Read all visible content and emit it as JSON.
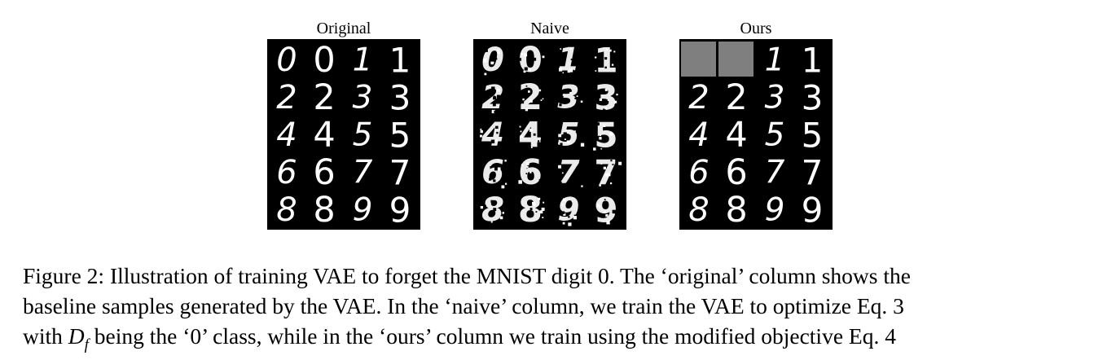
{
  "figure": {
    "panels": [
      {
        "title": "Original",
        "style": "clean",
        "rows": [
          [
            "0",
            "0",
            "1",
            "1"
          ],
          [
            "2",
            "2",
            "3",
            "3"
          ],
          [
            "4",
            "4",
            "5",
            "5"
          ],
          [
            "6",
            "6",
            "7",
            "7"
          ],
          [
            "8",
            "8",
            "9",
            "9"
          ]
        ],
        "gray_cells": []
      },
      {
        "title": "Naive",
        "style": "noisy",
        "rows": [
          [
            "0",
            "0",
            "1",
            "1"
          ],
          [
            "2",
            "2",
            "3",
            "3"
          ],
          [
            "4",
            "4",
            "5",
            "5"
          ],
          [
            "6",
            "6",
            "7",
            "7"
          ],
          [
            "8",
            "8",
            "9",
            "9"
          ]
        ],
        "gray_cells": []
      },
      {
        "title": "Ours",
        "style": "clean",
        "rows": [
          [
            "",
            "",
            "1",
            "1"
          ],
          [
            "2",
            "2",
            "3",
            "3"
          ],
          [
            "4",
            "4",
            "5",
            "5"
          ],
          [
            "6",
            "6",
            "7",
            "7"
          ],
          [
            "8",
            "8",
            "9",
            "9"
          ]
        ],
        "gray_cells": [
          [
            0,
            0
          ],
          [
            0,
            1
          ]
        ]
      }
    ],
    "caption": {
      "line1": "Figure 2: Illustration of training VAE to forget the MNIST digit 0. The ‘original’ column shows the",
      "line2": "baseline samples generated by the VAE. In the ‘naive’ column, we train the VAE to optimize Eq. 3",
      "line3_pre": "with ",
      "line3_sym": "D",
      "line3_sub": "f",
      "line3_post": " being the ‘0’ class, while in the ‘ours’ column we train using the modified objective Eq. 4"
    },
    "colors": {
      "panel_background": "#000000",
      "digit_stroke": "#ffffff",
      "gray_cell": "#7f7f7f"
    }
  }
}
